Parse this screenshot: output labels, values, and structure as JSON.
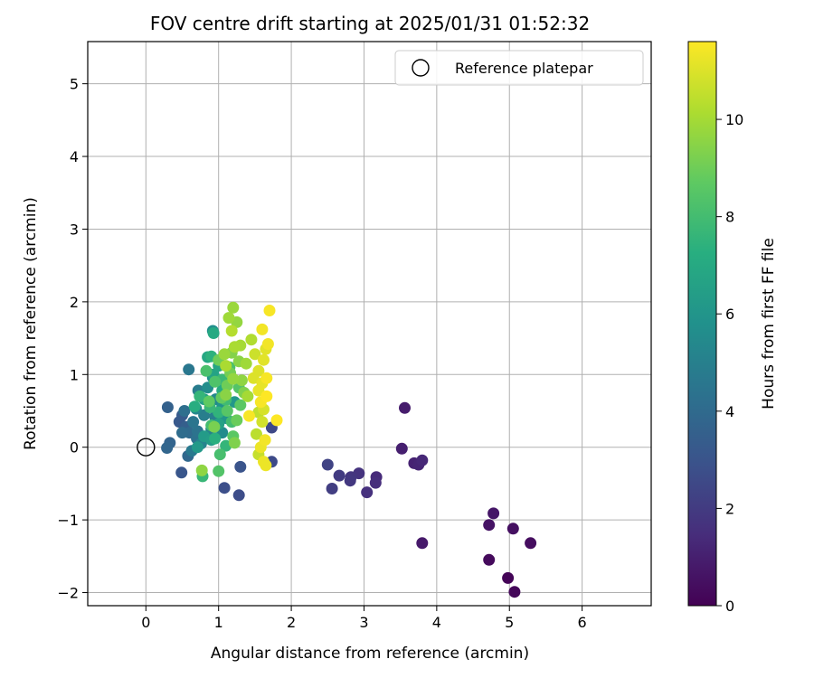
{
  "chart_data": {
    "type": "scatter",
    "title": "FOV centre drift starting at 2025/01/31 01:52:32",
    "xlabel": "Angular distance from reference (arcmin)",
    "ylabel": "Rotation from reference (arcmin)",
    "xlim": [
      -0.8,
      6.95
    ],
    "ylim": [
      -2.18,
      5.58
    ],
    "xticks": [
      0,
      1,
      2,
      3,
      4,
      5,
      6
    ],
    "yticks": [
      -2,
      -1,
      0,
      1,
      2,
      3,
      4,
      5
    ],
    "grid": true,
    "legend": {
      "position": "top-right",
      "entries": [
        "Reference platepar"
      ]
    },
    "reference_point": {
      "x": 0,
      "y": 0,
      "label": "Reference platepar"
    },
    "colorbar": {
      "label": "Hours from first FF file",
      "colormap": "viridis",
      "range": [
        0,
        11.6
      ],
      "ticks": [
        0,
        2,
        4,
        6,
        8,
        10
      ]
    },
    "series": [
      {
        "columns": [
          "x",
          "y",
          "hours"
        ],
        "points": [
          [
            4.98,
            -1.8,
            0.1
          ],
          [
            5.07,
            -1.99,
            0.2
          ],
          [
            4.72,
            -1.55,
            0.3
          ],
          [
            5.29,
            -1.32,
            0.4
          ],
          [
            5.05,
            -1.12,
            0.5
          ],
          [
            4.72,
            -1.07,
            0.6
          ],
          [
            4.78,
            -0.91,
            0.7
          ],
          [
            3.8,
            -1.32,
            0.8
          ],
          [
            3.56,
            0.54,
            0.9
          ],
          [
            3.52,
            -0.02,
            1.0
          ],
          [
            3.69,
            -0.22,
            1.1
          ],
          [
            3.75,
            -0.24,
            1.2
          ],
          [
            3.8,
            -0.18,
            1.3
          ],
          [
            3.17,
            -0.41,
            1.4
          ],
          [
            3.16,
            -0.49,
            1.5
          ],
          [
            3.04,
            -0.62,
            1.6
          ],
          [
            2.93,
            -0.36,
            1.7
          ],
          [
            2.82,
            -0.41,
            1.8
          ],
          [
            2.81,
            -0.46,
            1.9
          ],
          [
            2.66,
            -0.39,
            2.0
          ],
          [
            2.56,
            -0.57,
            2.1
          ],
          [
            2.5,
            -0.24,
            2.3
          ],
          [
            1.73,
            0.27,
            2.5
          ],
          [
            1.73,
            -0.2,
            2.6
          ],
          [
            1.28,
            -0.66,
            2.7
          ],
          [
            1.08,
            -0.56,
            2.8
          ],
          [
            1.3,
            -0.27,
            3.0
          ],
          [
            0.49,
            -0.35,
            3.1
          ],
          [
            0.46,
            0.35,
            3.2
          ],
          [
            0.5,
            0.44,
            3.3
          ],
          [
            0.55,
            0.28,
            3.5
          ],
          [
            0.3,
            0.55,
            3.6
          ],
          [
            0.33,
            0.06,
            3.7
          ],
          [
            0.29,
            -0.01,
            3.8
          ],
          [
            0.58,
            -0.12,
            3.9
          ],
          [
            0.6,
            0.2,
            4.0
          ],
          [
            0.5,
            0.2,
            4.1
          ],
          [
            0.53,
            0.5,
            4.2
          ],
          [
            0.7,
            0.12,
            4.3
          ],
          [
            0.71,
            0.22,
            4.4
          ],
          [
            0.65,
            0.35,
            4.5
          ],
          [
            0.59,
            1.07,
            4.6
          ],
          [
            0.63,
            -0.05,
            4.7
          ],
          [
            0.72,
            0.78,
            4.8
          ],
          [
            0.8,
            0.44,
            4.9
          ],
          [
            0.95,
            0.42,
            5.0
          ],
          [
            0.9,
            0.25,
            5.1
          ],
          [
            0.76,
            0.05,
            5.2
          ],
          [
            0.69,
            0.53,
            5.3
          ],
          [
            0.96,
            0.66,
            5.4
          ],
          [
            1.05,
            0.2,
            5.5
          ],
          [
            0.85,
            0.82,
            5.6
          ],
          [
            0.92,
            1.6,
            5.7
          ],
          [
            0.92,
            0.96,
            5.8
          ],
          [
            1.05,
            0.56,
            5.9
          ],
          [
            1.1,
            0.4,
            6.0
          ],
          [
            1.22,
            0.62,
            6.1
          ],
          [
            0.71,
            0.0,
            6.2
          ],
          [
            0.8,
            0.15,
            6.3
          ],
          [
            0.9,
            0.1,
            6.4
          ],
          [
            0.8,
            0.66,
            6.5
          ],
          [
            1.0,
            0.32,
            6.6
          ],
          [
            0.93,
            1.0,
            6.7
          ],
          [
            1.0,
            1.12,
            6.8
          ],
          [
            0.85,
            1.24,
            6.9
          ],
          [
            0.93,
            1.57,
            7.0
          ],
          [
            1.05,
            0.78,
            7.1
          ],
          [
            0.67,
            0.56,
            7.2
          ],
          [
            0.95,
            0.12,
            7.3
          ],
          [
            0.9,
            1.25,
            7.4
          ],
          [
            1.0,
            0.48,
            7.5
          ],
          [
            0.74,
            0.7,
            7.6
          ],
          [
            1.1,
            0.02,
            7.6
          ],
          [
            0.78,
            -0.4,
            7.7
          ],
          [
            0.88,
            0.55,
            7.7
          ],
          [
            1.05,
            0.93,
            7.8
          ],
          [
            1.1,
            0.65,
            7.9
          ],
          [
            1.18,
            0.35,
            8.0
          ],
          [
            0.9,
            0.3,
            8.0
          ],
          [
            1.02,
            -0.1,
            8.1
          ],
          [
            0.83,
            1.05,
            8.2
          ],
          [
            1.15,
            1.1,
            8.2
          ],
          [
            0.95,
            0.9,
            8.3
          ],
          [
            1.0,
            -0.33,
            8.4
          ],
          [
            1.28,
            0.82,
            8.4
          ],
          [
            1.12,
            0.5,
            8.5
          ],
          [
            1.2,
            0.15,
            8.6
          ],
          [
            1.3,
            0.58,
            8.6
          ],
          [
            0.87,
            0.63,
            8.7
          ],
          [
            1.04,
            0.68,
            8.8
          ],
          [
            1.25,
            0.37,
            8.9
          ],
          [
            1.0,
            1.2,
            9.0
          ],
          [
            1.12,
            0.85,
            9.0
          ],
          [
            1.16,
            1.02,
            9.1
          ],
          [
            0.94,
            0.28,
            9.2
          ],
          [
            1.22,
            0.06,
            9.3
          ],
          [
            1.35,
            0.75,
            9.3
          ],
          [
            1.18,
            1.3,
            9.4
          ],
          [
            1.1,
            0.72,
            9.5
          ],
          [
            1.28,
            1.18,
            9.5
          ],
          [
            0.77,
            -0.32,
            9.6
          ],
          [
            1.32,
            0.92,
            9.6
          ],
          [
            1.2,
            0.94,
            9.7
          ],
          [
            1.25,
            1.72,
            9.7
          ],
          [
            1.08,
            1.28,
            9.8
          ],
          [
            1.2,
            1.92,
            9.8
          ],
          [
            1.38,
            1.15,
            9.9
          ],
          [
            1.14,
            1.78,
            9.9
          ],
          [
            1.4,
            0.7,
            10.0
          ],
          [
            1.3,
            1.4,
            10.0
          ],
          [
            1.22,
            1.38,
            10.1
          ],
          [
            1.1,
            1.12,
            10.1
          ],
          [
            1.45,
            1.48,
            10.2
          ],
          [
            1.18,
            1.6,
            10.3
          ],
          [
            1.52,
            0.18,
            10.4
          ],
          [
            1.55,
            0.48,
            10.5
          ],
          [
            1.55,
            -0.1,
            10.6
          ],
          [
            1.5,
            1.28,
            10.7
          ],
          [
            1.6,
            0.35,
            10.8
          ],
          [
            1.62,
            0.52,
            10.9
          ],
          [
            1.48,
            0.95,
            11.0
          ],
          [
            1.55,
            1.05,
            11.0
          ],
          [
            1.62,
            1.2,
            11.1
          ],
          [
            1.65,
            1.35,
            11.1
          ],
          [
            1.55,
            0.78,
            11.2
          ],
          [
            1.6,
            0.88,
            11.2
          ],
          [
            1.58,
            0.0,
            11.3
          ],
          [
            1.62,
            -0.2,
            11.3
          ],
          [
            1.65,
            -0.25,
            11.3
          ],
          [
            1.64,
            0.1,
            11.4
          ],
          [
            1.6,
            1.62,
            11.4
          ],
          [
            1.68,
            1.42,
            11.4
          ],
          [
            1.7,
            1.88,
            11.5
          ],
          [
            1.58,
            0.62,
            11.5
          ],
          [
            1.66,
            0.95,
            11.5
          ],
          [
            1.42,
            0.43,
            11.5
          ],
          [
            1.8,
            0.37,
            11.6
          ],
          [
            1.66,
            0.7,
            11.6
          ]
        ]
      }
    ]
  }
}
